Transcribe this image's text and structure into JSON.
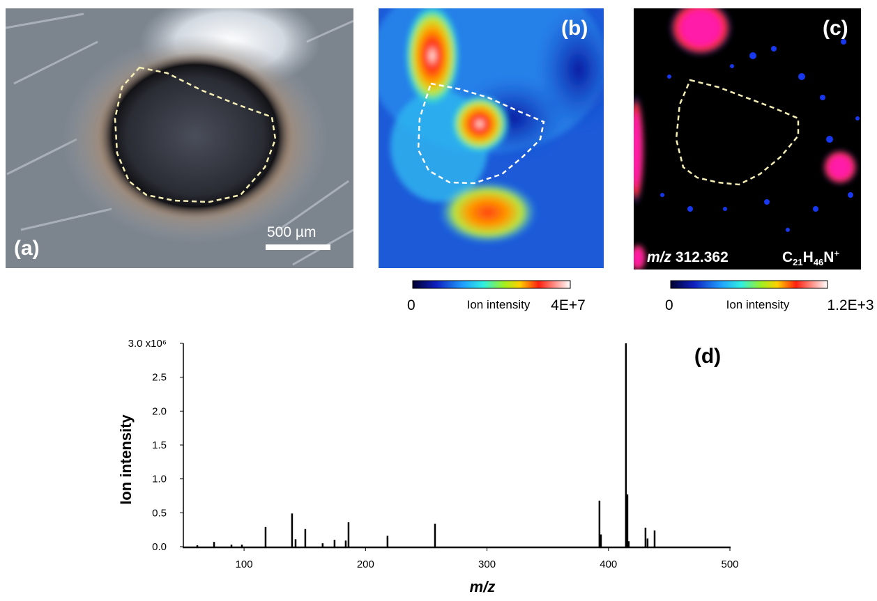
{
  "panels": {
    "a": {
      "label": "(a)",
      "scale_bar": "500 µm"
    },
    "b": {
      "label": "(b)",
      "colorbar": {
        "min": 0,
        "title": "Ion intensity",
        "max": "4E+7"
      }
    },
    "c": {
      "label": "(c)",
      "mz_prefix": "m/z",
      "mz": 312.362,
      "formula": [
        "C",
        "21",
        "H",
        "46",
        "N",
        "+"
      ],
      "colorbar": {
        "min": 0,
        "title": "Ion intensity",
        "max": "1.2E+3"
      }
    }
  },
  "chart_data": {
    "type": "bar",
    "label": "(d)",
    "xlabel": "m/z",
    "ylabel": "Ion intensity",
    "color": "#000000",
    "x": [
      61.5,
      75.3,
      89.6,
      98.2,
      117.7,
      139.5,
      142.4,
      150.4,
      164.7,
      174.5,
      183.7,
      186.0,
      218.1,
      257.2,
      392.6,
      393.8,
      414.4,
      415.6,
      416.7,
      430.5,
      432.2,
      438.0
    ],
    "values": [
      0.02,
      0.07,
      0.03,
      0.03,
      0.29,
      0.49,
      0.11,
      0.26,
      0.05,
      0.1,
      0.09,
      0.36,
      0.16,
      0.34,
      0.68,
      0.18,
      3.0,
      0.77,
      0.08,
      0.28,
      0.12,
      0.24
    ],
    "xlim": [
      50,
      500
    ],
    "xticks": [
      100,
      200,
      300,
      400,
      500
    ],
    "ylim": [
      0,
      3.0
    ],
    "yticks": [
      {
        "value": 0,
        "label": "0.0"
      },
      0.5,
      {
        "value": 1,
        "label": "1.0"
      },
      1.5,
      {
        "value": 2,
        "label": "2.0"
      },
      2.5,
      {
        "value": 3,
        "label": "3.0 x10⁶"
      }
    ]
  }
}
